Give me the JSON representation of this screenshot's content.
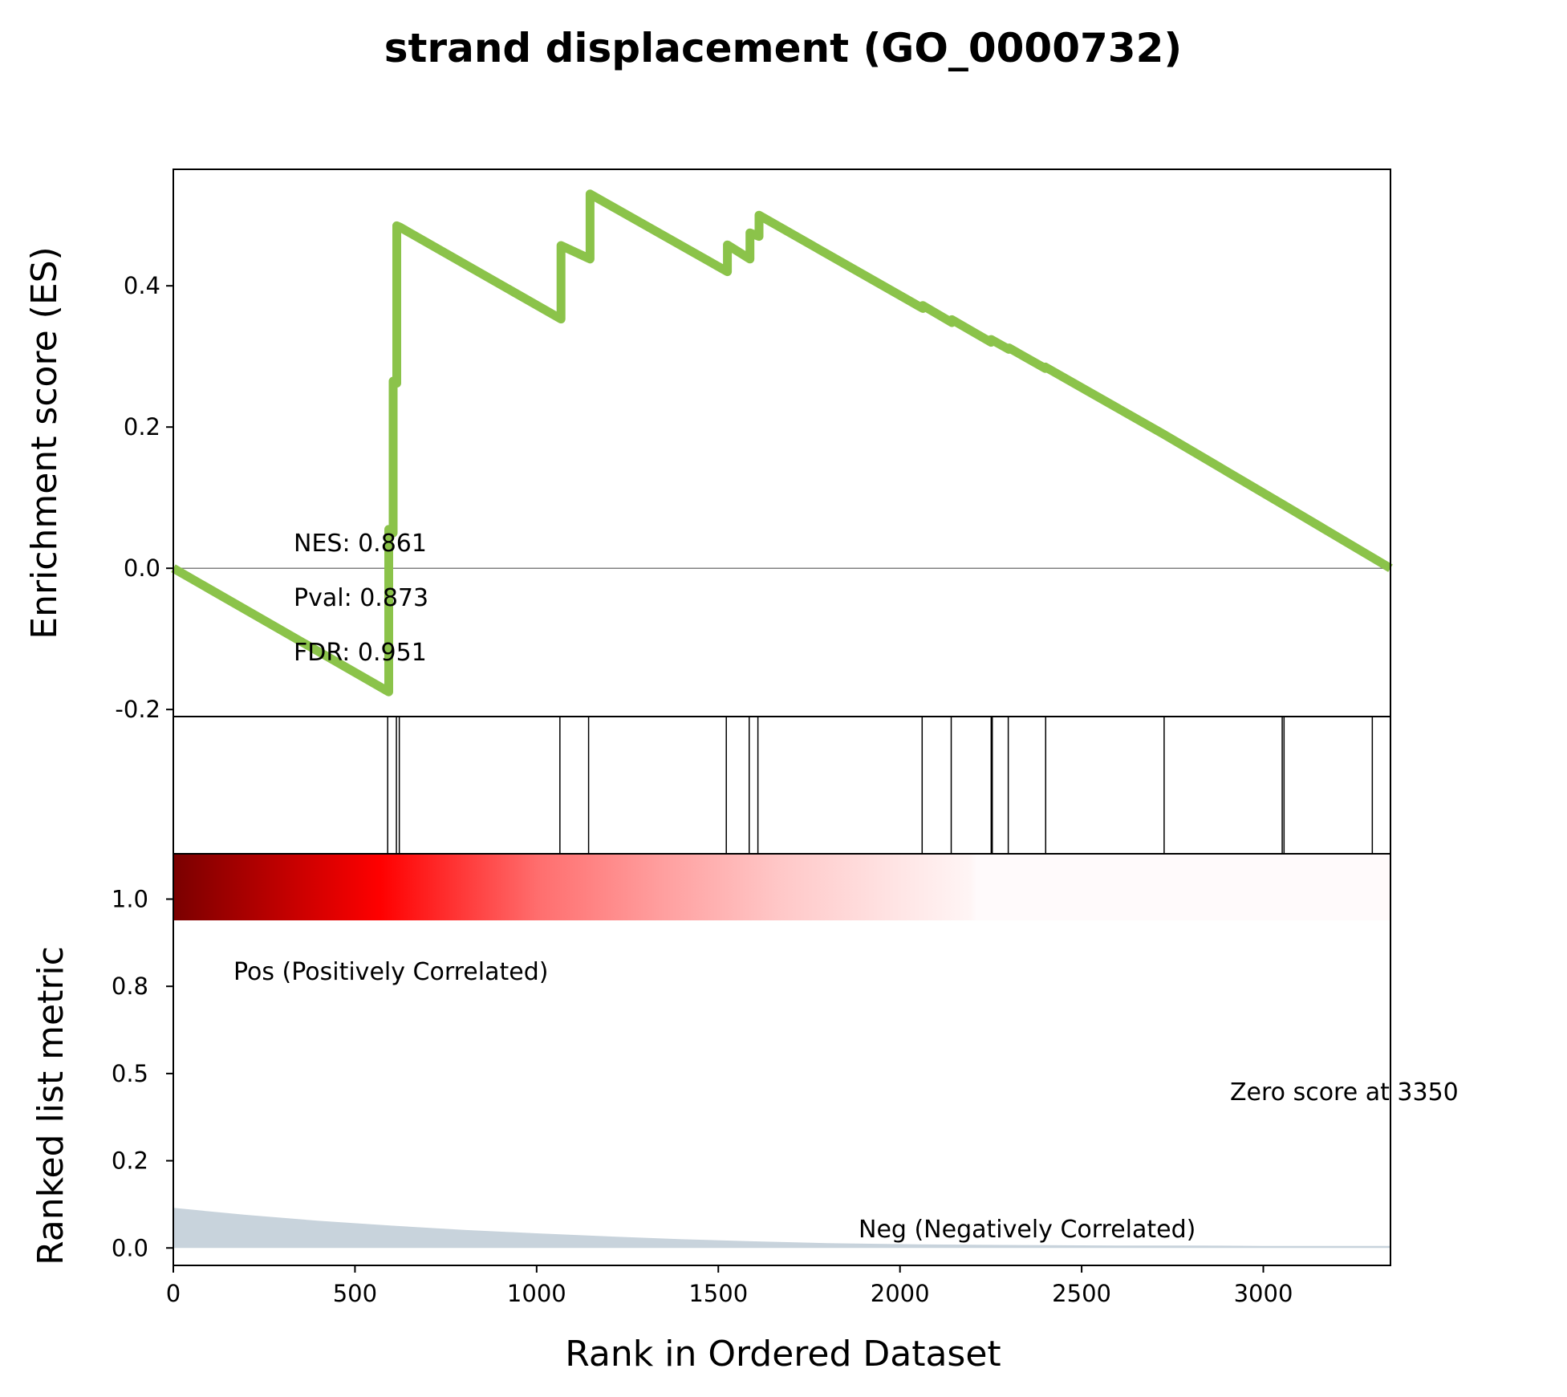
{
  "chart_data": {
    "type": "line",
    "title": "strand displacement (GO_0000732)",
    "es_panel": {
      "ylabel": "Enrichment score (ES)",
      "ylim": [
        -0.21,
        0.565
      ],
      "yticks": [
        "-0.2",
        "0.0",
        "0.2",
        "0.4"
      ],
      "ytick_values": [
        -0.2,
        0.0,
        0.2,
        0.4
      ],
      "line_color": "#8bc34a",
      "series": [
        {
          "x": [
            0,
            593,
            593,
            605,
            605,
            615,
            615,
            624,
            624,
            1067,
            1067,
            1147,
            1147,
            1525,
            1525,
            1587,
            1587,
            1612,
            1612,
            2063,
            2063,
            2143,
            2143,
            2251,
            2251,
            2300,
            2300,
            2400,
            2400,
            2725,
            2725,
            3055,
            3055,
            3350
          ],
          "y": [
            0.0,
            -0.175,
            0.055,
            0.05,
            0.265,
            0.262,
            0.485,
            0.483,
            0.483,
            0.353,
            0.457,
            0.438,
            0.53,
            0.42,
            0.458,
            0.438,
            0.475,
            0.47,
            0.5,
            0.368,
            0.372,
            0.348,
            0.352,
            0.32,
            0.324,
            0.31,
            0.312,
            0.283,
            0.285,
            0.19,
            0.19,
            0.09,
            0.09,
            0.0
          ]
        }
      ],
      "annotations": [
        "NES: 0.861",
        "Pval: 0.873",
        "FDR: 0.951"
      ]
    },
    "hits": [
      590,
      614,
      622,
      1064,
      1143,
      1522,
      1585,
      1609,
      2061,
      2141,
      2251,
      2254,
      2298,
      2401,
      2727,
      3052,
      3057,
      3300
    ],
    "metric_panel": {
      "ylabel": "Ranked list metric",
      "yticks": [
        "0.0",
        "0.2",
        "0.5",
        "0.8",
        "1.0"
      ],
      "ytick_values": [
        0.0,
        0.25,
        0.5,
        0.75,
        1.0
      ],
      "ylim": [
        -0.05,
        1.13
      ],
      "fill_color": "#c8d3dc",
      "metric_x": [
        0,
        200,
        400,
        600,
        800,
        1000,
        1200,
        1400,
        1600,
        1800,
        2000,
        2200,
        2400,
        2600,
        2800,
        3000,
        3200,
        3350
      ],
      "metric_y": [
        0.115,
        0.095,
        0.078,
        0.064,
        0.052,
        0.042,
        0.033,
        0.025,
        0.019,
        0.014,
        0.011,
        0.009,
        0.008,
        0.007,
        0.007,
        0.006,
        0.006,
        0.006
      ],
      "pos_label": "Pos (Positively Correlated)",
      "neg_label": "Neg (Negatively Correlated)",
      "pos_color": "#ff0000",
      "neg_color": "#0000ff",
      "zero_score_label": "Zero score at 3350"
    },
    "xlabel": "Rank in Ordered Dataset",
    "xlim": [
      0,
      3350
    ],
    "xticks": [
      "0",
      "500",
      "1000",
      "1500",
      "2000",
      "2500",
      "3000"
    ],
    "xtick_values": [
      0,
      500,
      1000,
      1500,
      2000,
      2500,
      3000
    ],
    "grid": false
  }
}
